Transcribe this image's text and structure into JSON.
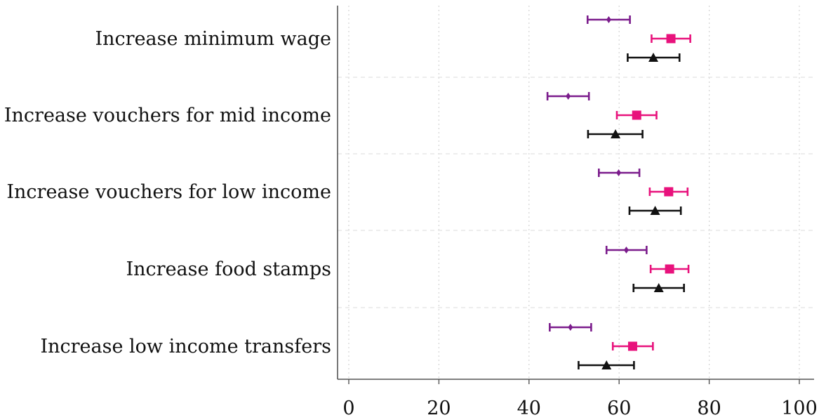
{
  "chart_data": {
    "type": "dot-errorbar",
    "title": "",
    "xlabel": "",
    "ylabel": "",
    "xlim": [
      -3,
      103
    ],
    "xticks": [
      0,
      20,
      40,
      60,
      80,
      100
    ],
    "grid": {
      "vertical": true,
      "horizontal": true
    },
    "categories": [
      "Increase minimum wage",
      "Increase vouchers for mid income",
      "Increase vouchers for low income",
      "Increase food stamps",
      "Increase low income transfers"
    ],
    "series": [
      {
        "marker": "diamond",
        "color": "#7b1c8c",
        "points": [
          {
            "value": 57.7,
            "low": 53.0,
            "high": 62.4
          },
          {
            "value": 48.7,
            "low": 44.1,
            "high": 53.3
          },
          {
            "value": 59.9,
            "low": 55.5,
            "high": 64.5
          },
          {
            "value": 61.6,
            "low": 57.2,
            "high": 66.1
          },
          {
            "value": 49.2,
            "low": 44.6,
            "high": 53.8
          }
        ]
      },
      {
        "marker": "square",
        "color": "#e8127c",
        "points": [
          {
            "value": 71.5,
            "low": 67.2,
            "high": 75.8
          },
          {
            "value": 63.9,
            "low": 59.5,
            "high": 68.3
          },
          {
            "value": 71.0,
            "low": 66.8,
            "high": 75.2
          },
          {
            "value": 71.2,
            "low": 67.0,
            "high": 75.4
          },
          {
            "value": 63.0,
            "low": 58.6,
            "high": 67.5
          }
        ]
      },
      {
        "marker": "triangle",
        "color": "#111111",
        "points": [
          {
            "value": 67.6,
            "low": 61.9,
            "high": 73.4
          },
          {
            "value": 59.2,
            "low": 53.1,
            "high": 65.2
          },
          {
            "value": 68.0,
            "low": 62.3,
            "high": 73.7
          },
          {
            "value": 68.8,
            "low": 63.2,
            "high": 74.4
          },
          {
            "value": 57.2,
            "low": 51.0,
            "high": 63.3
          }
        ]
      }
    ]
  }
}
